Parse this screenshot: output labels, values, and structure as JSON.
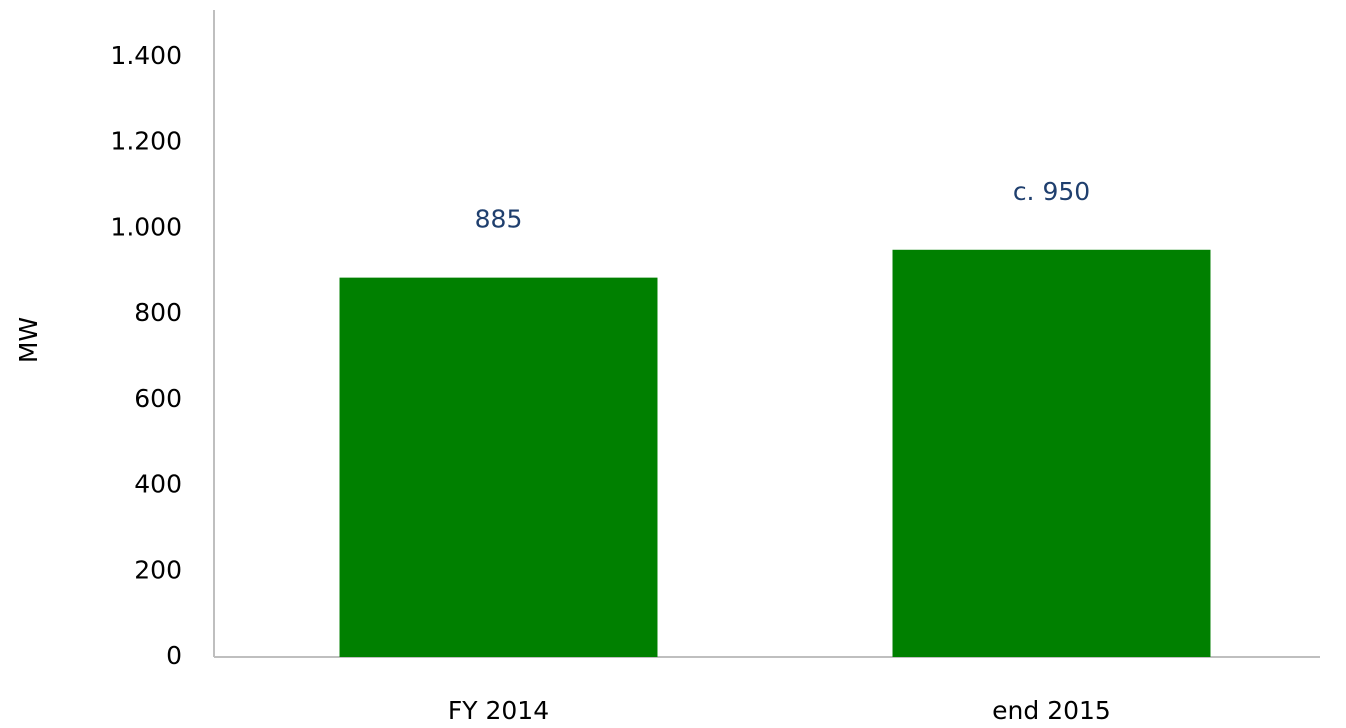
{
  "chart_data": {
    "type": "bar",
    "y_label": "MW",
    "categories": [
      "FY 2014",
      "end 2015"
    ],
    "values": [
      885,
      950
    ],
    "value_labels": [
      "885",
      "c. 950"
    ],
    "color": "#008000",
    "ylim": [
      0,
      1500
    ],
    "yticks": [
      0,
      200,
      400,
      600,
      800,
      {
        "value": 1000,
        "label": "1.000"
      },
      {
        "value": 1200,
        "label": "1.200"
      },
      {
        "value": 1400,
        "label": "1.400"
      }
    ],
    "grid": false
  }
}
